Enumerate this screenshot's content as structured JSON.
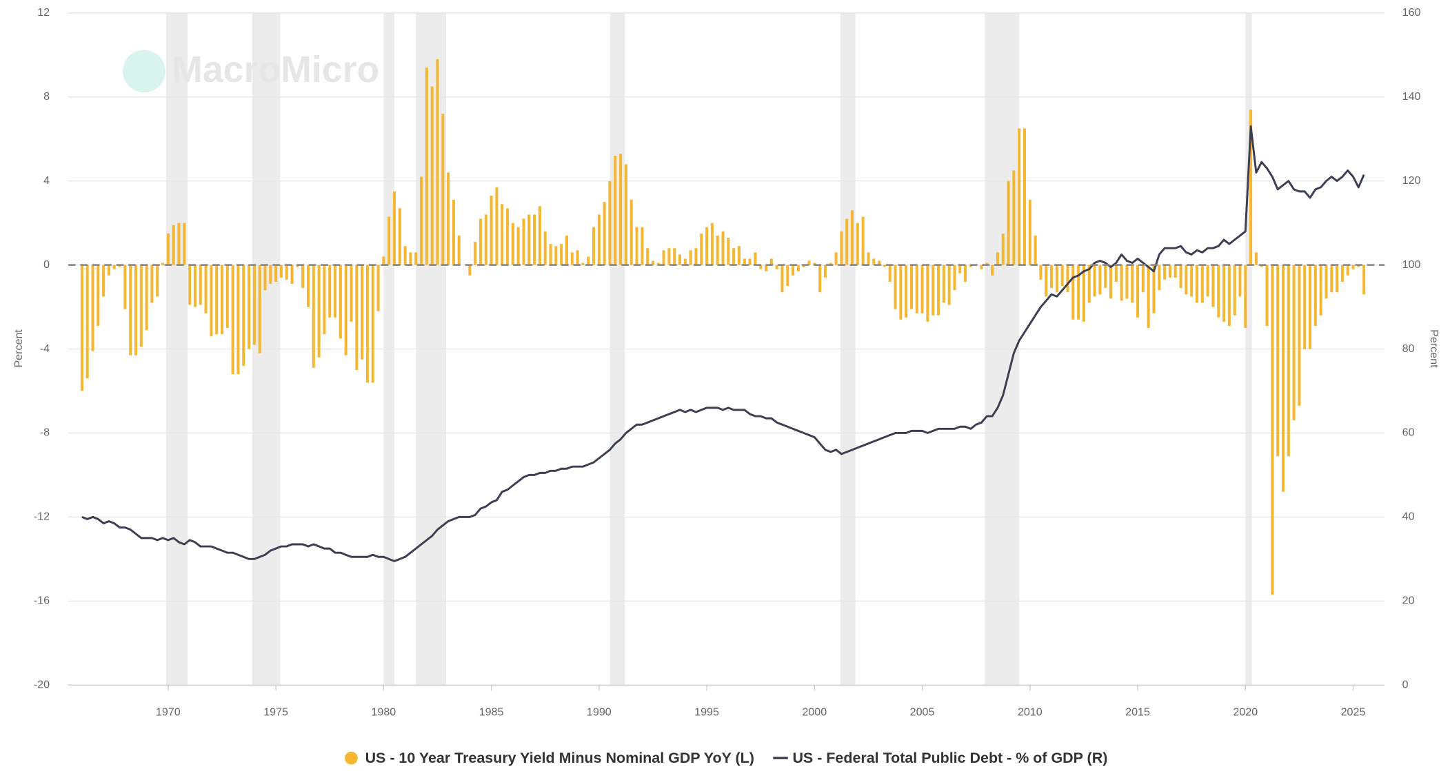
{
  "chart_data": {
    "type": "combo",
    "watermark": "MacroMicro",
    "y_label": "Percent",
    "y2_label": "Percent",
    "xlim": [
      1965.36,
      2026.46
    ],
    "xticks": [
      1970,
      1975,
      1980,
      1985,
      1990,
      1995,
      2000,
      2005,
      2010,
      2015,
      2020,
      2025
    ],
    "ylim": [
      -20,
      12
    ],
    "yticks": [
      -20,
      -16,
      -12,
      -8,
      -4,
      0,
      4,
      8,
      12
    ],
    "y2lim": [
      0,
      160
    ],
    "y2ticks": [
      0,
      20,
      40,
      60,
      80,
      100,
      120,
      140,
      160
    ],
    "grid": true,
    "recessions": [
      [
        1969.9,
        1970.9
      ],
      [
        1973.9,
        1975.2
      ],
      [
        1980.0,
        1980.5
      ],
      [
        1981.5,
        1982.9
      ],
      [
        1990.5,
        1991.2
      ],
      [
        2001.2,
        2001.9
      ],
      [
        2007.9,
        2009.5
      ],
      [
        2020.0,
        2020.3
      ]
    ],
    "x": [
      1966,
      1966.25,
      1966.5,
      1966.75,
      1967,
      1967.25,
      1967.5,
      1967.75,
      1968,
      1968.25,
      1968.5,
      1968.75,
      1969,
      1969.25,
      1969.5,
      1969.75,
      1970,
      1970.25,
      1970.5,
      1970.75,
      1971,
      1971.25,
      1971.5,
      1971.75,
      1972,
      1972.25,
      1972.5,
      1972.75,
      1973,
      1973.25,
      1973.5,
      1973.75,
      1974,
      1974.25,
      1974.5,
      1974.75,
      1975,
      1975.25,
      1975.5,
      1975.75,
      1976,
      1976.25,
      1976.5,
      1976.75,
      1977,
      1977.25,
      1977.5,
      1977.75,
      1978,
      1978.25,
      1978.5,
      1978.75,
      1979,
      1979.25,
      1979.5,
      1979.75,
      1980,
      1980.25,
      1980.5,
      1980.75,
      1981,
      1981.25,
      1981.5,
      1981.75,
      1982,
      1982.25,
      1982.5,
      1982.75,
      1983,
      1983.25,
      1983.5,
      1983.75,
      1984,
      1984.25,
      1984.5,
      1984.75,
      1985,
      1985.25,
      1985.5,
      1985.75,
      1986,
      1986.25,
      1986.5,
      1986.75,
      1987,
      1987.25,
      1987.5,
      1987.75,
      1988,
      1988.25,
      1988.5,
      1988.75,
      1989,
      1989.25,
      1989.5,
      1989.75,
      1990,
      1990.25,
      1990.5,
      1990.75,
      1991,
      1991.25,
      1991.5,
      1991.75,
      1992,
      1992.25,
      1992.5,
      1992.75,
      1993,
      1993.25,
      1993.5,
      1993.75,
      1994,
      1994.25,
      1994.5,
      1994.75,
      1995,
      1995.25,
      1995.5,
      1995.75,
      1996,
      1996.25,
      1996.5,
      1996.75,
      1997,
      1997.25,
      1997.5,
      1997.75,
      1998,
      1998.25,
      1998.5,
      1998.75,
      1999,
      1999.25,
      1999.5,
      1999.75,
      2000,
      2000.25,
      2000.5,
      2000.75,
      2001,
      2001.25,
      2001.5,
      2001.75,
      2002,
      2002.25,
      2002.5,
      2002.75,
      2003,
      2003.25,
      2003.5,
      2003.75,
      2004,
      2004.25,
      2004.5,
      2004.75,
      2005,
      2005.25,
      2005.5,
      2005.75,
      2006,
      2006.25,
      2006.5,
      2006.75,
      2007,
      2007.25,
      2007.5,
      2007.75,
      2008,
      2008.25,
      2008.5,
      2008.75,
      2009,
      2009.25,
      2009.5,
      2009.75,
      2010,
      2010.25,
      2010.5,
      2010.75,
      2011,
      2011.25,
      2011.5,
      2011.75,
      2012,
      2012.25,
      2012.5,
      2012.75,
      2013,
      2013.25,
      2013.5,
      2013.75,
      2014,
      2014.25,
      2014.5,
      2014.75,
      2015,
      2015.25,
      2015.5,
      2015.75,
      2016,
      2016.25,
      2016.5,
      2016.75,
      2017,
      2017.25,
      2017.5,
      2017.75,
      2018,
      2018.25,
      2018.5,
      2018.75,
      2019,
      2019.25,
      2019.5,
      2019.75,
      2020,
      2020.25,
      2020.5,
      2020.75,
      2021,
      2021.25,
      2021.5,
      2021.75,
      2022,
      2022.25,
      2022.5,
      2022.75,
      2023,
      2023.25,
      2023.5,
      2023.75,
      2024,
      2024.25,
      2024.5,
      2024.75,
      2025,
      2025.25,
      2025.5
    ],
    "series": [
      {
        "name": "US - 10 Year Treasury Yield Minus Nominal GDP YoY (L)",
        "type": "bar",
        "color": "#f5b731",
        "axis": "y",
        "values": [
          -6.0,
          -5.4,
          -4.1,
          -2.9,
          -1.5,
          -0.5,
          -0.2,
          -0.1,
          -2.1,
          -4.3,
          -4.3,
          -3.9,
          -3.1,
          -1.8,
          -1.5,
          0.1,
          1.5,
          1.9,
          2.0,
          2.0,
          -1.9,
          -2.0,
          -1.9,
          -2.3,
          -3.4,
          -3.3,
          -3.3,
          -3.0,
          -5.2,
          -5.2,
          -4.8,
          -4.0,
          -3.8,
          -4.2,
          -1.2,
          -0.9,
          -0.8,
          -0.6,
          -0.7,
          -0.9,
          -0.1,
          -1.1,
          -2.0,
          -4.9,
          -4.4,
          -3.3,
          -2.5,
          -2.5,
          -3.5,
          -4.3,
          -2.7,
          -5.0,
          -4.5,
          -5.6,
          -5.6,
          -2.2,
          0.4,
          2.3,
          3.5,
          2.7,
          0.9,
          0.6,
          0.6,
          4.2,
          9.4,
          8.5,
          9.8,
          7.2,
          4.4,
          3.1,
          1.4,
          0.0,
          -0.5,
          1.1,
          2.2,
          2.4,
          3.3,
          3.7,
          2.9,
          2.7,
          2.0,
          1.8,
          2.2,
          2.4,
          2.4,
          2.8,
          1.6,
          1.0,
          0.9,
          1.0,
          1.4,
          0.6,
          0.7,
          0.1,
          0.4,
          1.8,
          2.4,
          3.0,
          4.0,
          5.2,
          5.3,
          4.8,
          3.1,
          1.8,
          1.8,
          0.8,
          0.2,
          0.1,
          0.7,
          0.8,
          0.8,
          0.5,
          0.3,
          0.7,
          0.8,
          1.5,
          1.8,
          2.0,
          1.4,
          1.6,
          1.3,
          0.8,
          0.9,
          0.3,
          0.3,
          0.6,
          -0.2,
          -0.3,
          0.3,
          -0.2,
          -1.3,
          -1.0,
          -0.5,
          -0.3,
          -0.1,
          0.2,
          0.1,
          -1.3,
          -0.6,
          0.1,
          0.6,
          1.6,
          2.2,
          2.6,
          2.0,
          2.3,
          0.6,
          0.3,
          0.2,
          -0.1,
          -0.8,
          -2.1,
          -2.6,
          -2.5,
          -2.1,
          -2.3,
          -2.3,
          -2.7,
          -2.4,
          -2.4,
          -1.8,
          -1.9,
          -1.2,
          -0.4,
          -0.8,
          -0.1,
          0.0,
          -0.2,
          0.1,
          -0.5,
          0.6,
          1.5,
          4.0,
          4.5,
          6.5,
          6.5,
          3.1,
          1.4,
          -0.7,
          -1.5,
          -1.1,
          -1.3,
          -1.0,
          -1.3,
          -2.6,
          -2.6,
          -2.7,
          -1.8,
          -1.5,
          -1.4,
          -1.1,
          -1.6,
          -0.8,
          -1.7,
          -1.6,
          -1.8,
          -2.5,
          -1.3,
          -3.0,
          -2.3,
          -1.2,
          -0.7,
          -0.6,
          -0.6,
          -1.1,
          -1.4,
          -1.5,
          -1.8,
          -1.8,
          -1.5,
          -2.0,
          -2.5,
          -2.7,
          -2.9,
          -2.4,
          -1.5,
          -3.0,
          7.4,
          0.6,
          -0.1,
          -2.9,
          -15.7,
          -9.1,
          -10.8,
          -9.1,
          -7.4,
          -6.7,
          -4.0,
          -4.0,
          -2.9,
          -2.4,
          -1.6,
          -1.3,
          -1.3,
          -0.8,
          -0.5,
          -0.2,
          -0.1,
          -1.4
        ]
      },
      {
        "name": "US - Federal Total Public Debt - % of GDP (R)",
        "type": "line",
        "color": "#3b3f51",
        "axis": "y2",
        "values": [
          40,
          39.5,
          40,
          39.5,
          38.5,
          39,
          38.5,
          37.5,
          37.5,
          37,
          36,
          35,
          35,
          35,
          34.5,
          35,
          34.5,
          35,
          34,
          33.5,
          34.5,
          34,
          33,
          33,
          33,
          32.5,
          32,
          31.5,
          31.5,
          31,
          30.5,
          30,
          30,
          30.5,
          31,
          32,
          32.5,
          33,
          33,
          33.5,
          33.5,
          33.5,
          33,
          33.5,
          33,
          32.5,
          32.5,
          31.5,
          31.5,
          31,
          30.5,
          30.5,
          30.5,
          30.5,
          31,
          30.5,
          30.5,
          30,
          29.5,
          30,
          30.5,
          31.5,
          32.5,
          33.5,
          34.5,
          35.5,
          37,
          38,
          39,
          39.5,
          40,
          40,
          40,
          40.5,
          42,
          42.5,
          43.5,
          44,
          46,
          46.5,
          47.5,
          48.5,
          49.5,
          50,
          50,
          50.5,
          50.5,
          51,
          51,
          51.5,
          51.5,
          52,
          52,
          52,
          52.5,
          53,
          54,
          55,
          56,
          57.5,
          58.5,
          60,
          61,
          62,
          62,
          62.5,
          63,
          63.5,
          64,
          64.5,
          65,
          65.5,
          65,
          65.5,
          65,
          65.5,
          66,
          66,
          66,
          65.5,
          66,
          65.5,
          65.5,
          65.5,
          64.5,
          64,
          64,
          63.5,
          63.5,
          62.5,
          62,
          61.5,
          61,
          60.5,
          60,
          59.5,
          59,
          57.5,
          56,
          55.5,
          56,
          55,
          55.5,
          56,
          56.5,
          57,
          57.5,
          58,
          58.5,
          59,
          59.5,
          60,
          60,
          60,
          60.5,
          60.5,
          60.5,
          60,
          60.5,
          61,
          61,
          61,
          61,
          61.5,
          61.5,
          61,
          62,
          62.5,
          64,
          64,
          66,
          69,
          74,
          79,
          82,
          84,
          86,
          88,
          90,
          91.5,
          93,
          92.5,
          94,
          95.5,
          97,
          97.5,
          98.5,
          99,
          100.5,
          101,
          100.5,
          99.5,
          100.5,
          102.5,
          101,
          100.5,
          101.5,
          100.5,
          99.5,
          98.5,
          102.5,
          104,
          104,
          104,
          104.5,
          103,
          102.5,
          103.5,
          103,
          104,
          104,
          104.5,
          106,
          105,
          106,
          107,
          108,
          133,
          122,
          124.5,
          123,
          121,
          118,
          119,
          120,
          118,
          117.5,
          117.5,
          116,
          118,
          118.5,
          120,
          121,
          120,
          121,
          122.5,
          121,
          118.5,
          121.5
        ]
      }
    ]
  }
}
